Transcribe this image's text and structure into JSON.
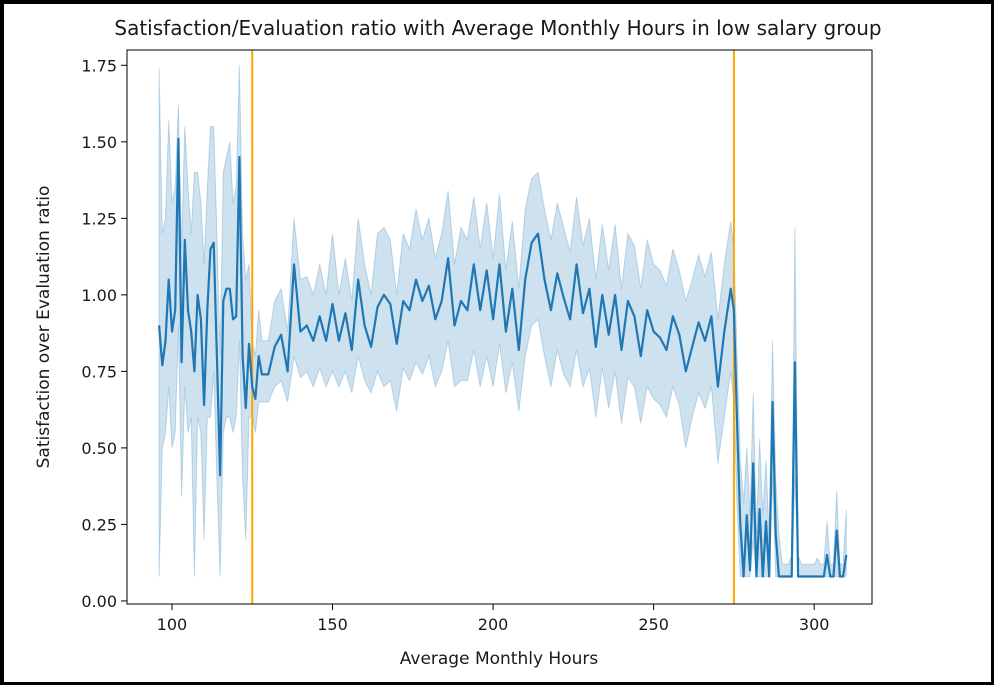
{
  "chart_data": {
    "type": "line",
    "title": "Satisfaction/Evaluation ratio with Average Monthly Hours in low salary group",
    "xlabel": "Average Monthly Hours",
    "ylabel": "Satisfaction over Evaluation ratio",
    "xlim": [
      86,
      318
    ],
    "ylim": [
      -0.01,
      1.8
    ],
    "xticks": [
      100,
      150,
      200,
      250,
      300
    ],
    "yticks": [
      0.0,
      0.25,
      0.5,
      0.75,
      1.0,
      1.25,
      1.5,
      1.75
    ],
    "xtick_labels": [
      "100",
      "150",
      "200",
      "250",
      "300"
    ],
    "ytick_labels": [
      "0.00",
      "0.25",
      "0.50",
      "0.75",
      "1.00",
      "1.25",
      "1.50",
      "1.75"
    ],
    "grid": false,
    "vlines": [
      {
        "x": 125,
        "color": "#ffa500"
      },
      {
        "x": 275,
        "color": "#ffa500"
      }
    ],
    "series": [
      {
        "color": "#1f77b4",
        "band_color": "#1f77b4",
        "x": [
          96,
          97,
          98,
          99,
          100,
          101,
          102,
          103,
          104,
          105,
          106,
          107,
          108,
          109,
          110,
          111,
          112,
          113,
          114,
          115,
          116,
          117,
          118,
          119,
          120,
          121,
          122,
          123,
          124,
          125,
          126,
          127,
          128,
          130,
          132,
          134,
          136,
          138,
          140,
          142,
          144,
          146,
          148,
          150,
          152,
          154,
          156,
          158,
          160,
          162,
          164,
          166,
          168,
          170,
          172,
          174,
          176,
          178,
          180,
          182,
          184,
          186,
          188,
          190,
          192,
          194,
          196,
          198,
          200,
          202,
          204,
          206,
          208,
          210,
          212,
          214,
          216,
          218,
          220,
          222,
          224,
          226,
          228,
          230,
          232,
          234,
          236,
          238,
          240,
          242,
          244,
          246,
          248,
          250,
          252,
          254,
          256,
          258,
          260,
          262,
          264,
          266,
          268,
          270,
          272,
          274,
          275,
          276,
          277,
          278,
          279,
          280,
          281,
          282,
          283,
          284,
          285,
          286,
          287,
          288,
          289,
          290,
          291,
          292,
          293,
          294,
          295,
          296,
          297,
          298,
          299,
          300,
          301,
          302,
          303,
          304,
          305,
          306,
          307,
          308,
          309,
          310
        ],
        "y": [
          0.9,
          0.77,
          0.85,
          1.05,
          0.88,
          0.95,
          1.51,
          0.78,
          1.18,
          0.95,
          0.88,
          0.75,
          1.0,
          0.92,
          0.64,
          0.95,
          1.15,
          1.17,
          0.8,
          0.41,
          0.98,
          1.02,
          1.02,
          0.92,
          0.93,
          1.45,
          0.8,
          0.63,
          0.84,
          0.7,
          0.66,
          0.8,
          0.74,
          0.74,
          0.83,
          0.87,
          0.75,
          1.1,
          0.88,
          0.9,
          0.85,
          0.93,
          0.85,
          0.97,
          0.85,
          0.94,
          0.82,
          1.05,
          0.9,
          0.83,
          0.96,
          1.0,
          0.97,
          0.84,
          0.98,
          0.95,
          1.05,
          0.98,
          1.03,
          0.92,
          0.98,
          1.12,
          0.9,
          0.98,
          0.95,
          1.1,
          0.95,
          1.08,
          0.92,
          1.1,
          0.88,
          1.02,
          0.82,
          1.05,
          1.17,
          1.2,
          1.05,
          0.95,
          1.07,
          0.99,
          0.92,
          1.1,
          0.94,
          1.02,
          0.83,
          1.0,
          0.87,
          1.0,
          0.82,
          0.98,
          0.93,
          0.8,
          0.95,
          0.88,
          0.86,
          0.82,
          0.93,
          0.87,
          0.75,
          0.83,
          0.91,
          0.85,
          0.93,
          0.7,
          0.88,
          1.02,
          0.95,
          0.58,
          0.25,
          0.08,
          0.28,
          0.1,
          0.45,
          0.08,
          0.3,
          0.08,
          0.26,
          0.08,
          0.65,
          0.22,
          0.08,
          0.08,
          0.08,
          0.08,
          0.08,
          0.78,
          0.08,
          0.08,
          0.08,
          0.08,
          0.08,
          0.08,
          0.08,
          0.08,
          0.08,
          0.15,
          0.08,
          0.08,
          0.23,
          0.08,
          0.08,
          0.15
        ],
        "lower": [
          0.08,
          0.5,
          0.55,
          0.7,
          0.5,
          0.55,
          0.9,
          0.34,
          0.7,
          0.55,
          0.6,
          0.08,
          0.6,
          0.55,
          0.2,
          0.6,
          0.6,
          0.75,
          0.4,
          0.08,
          0.55,
          0.6,
          0.6,
          0.55,
          0.6,
          0.85,
          0.4,
          0.2,
          0.6,
          0.6,
          0.55,
          0.65,
          0.65,
          0.65,
          0.7,
          0.72,
          0.65,
          0.8,
          0.73,
          0.75,
          0.7,
          0.76,
          0.7,
          0.75,
          0.7,
          0.75,
          0.68,
          0.8,
          0.72,
          0.68,
          0.75,
          0.7,
          0.72,
          0.62,
          0.76,
          0.72,
          0.78,
          0.74,
          0.8,
          0.7,
          0.75,
          0.85,
          0.7,
          0.72,
          0.72,
          0.82,
          0.7,
          0.8,
          0.7,
          0.84,
          0.68,
          0.78,
          0.62,
          0.8,
          0.9,
          0.92,
          0.8,
          0.7,
          0.82,
          0.74,
          0.7,
          0.82,
          0.7,
          0.76,
          0.6,
          0.76,
          0.63,
          0.75,
          0.58,
          0.73,
          0.7,
          0.58,
          0.7,
          0.66,
          0.64,
          0.6,
          0.7,
          0.64,
          0.5,
          0.6,
          0.68,
          0.63,
          0.7,
          0.45,
          0.6,
          0.75,
          0.65,
          0.3,
          0.08,
          0.08,
          0.08,
          0.08,
          0.2,
          0.08,
          0.08,
          0.08,
          0.08,
          0.08,
          0.4,
          0.08,
          0.08,
          0.08,
          0.08,
          0.08,
          0.08,
          0.4,
          0.08,
          0.08,
          0.08,
          0.08,
          0.08,
          0.08,
          0.08,
          0.08,
          0.08,
          0.08,
          0.08,
          0.08,
          0.08,
          0.08,
          0.08,
          0.08
        ],
        "upper": [
          1.74,
          1.2,
          1.25,
          1.57,
          1.3,
          1.35,
          1.62,
          1.15,
          1.55,
          1.35,
          1.2,
          1.4,
          1.4,
          1.3,
          1.1,
          1.35,
          1.55,
          1.55,
          1.2,
          0.8,
          1.4,
          1.45,
          1.5,
          1.3,
          1.35,
          1.75,
          1.2,
          1.05,
          1.1,
          0.85,
          0.8,
          0.95,
          0.85,
          0.85,
          0.98,
          1.02,
          0.88,
          1.25,
          1.05,
          1.06,
          1.0,
          1.1,
          1.0,
          1.2,
          1.0,
          1.12,
          0.98,
          1.25,
          1.1,
          1.0,
          1.2,
          1.22,
          1.18,
          1.0,
          1.2,
          1.15,
          1.28,
          1.18,
          1.25,
          1.12,
          1.2,
          1.34,
          1.1,
          1.22,
          1.18,
          1.32,
          1.15,
          1.3,
          1.12,
          1.33,
          1.08,
          1.24,
          1.02,
          1.28,
          1.38,
          1.4,
          1.28,
          1.18,
          1.3,
          1.22,
          1.14,
          1.32,
          1.16,
          1.25,
          1.05,
          1.23,
          1.08,
          1.23,
          1.02,
          1.2,
          1.16,
          1.02,
          1.18,
          1.1,
          1.08,
          1.03,
          1.15,
          1.08,
          0.98,
          1.05,
          1.13,
          1.06,
          1.14,
          0.92,
          1.1,
          1.24,
          1.15,
          0.8,
          0.46,
          0.32,
          0.5,
          0.28,
          0.68,
          0.22,
          0.53,
          0.28,
          0.46,
          0.2,
          0.85,
          0.4,
          0.22,
          0.12,
          0.12,
          0.12,
          0.15,
          1.22,
          0.15,
          0.12,
          0.12,
          0.12,
          0.12,
          0.12,
          0.14,
          0.12,
          0.12,
          0.26,
          0.12,
          0.12,
          0.36,
          0.12,
          0.12,
          0.3
        ]
      }
    ]
  }
}
